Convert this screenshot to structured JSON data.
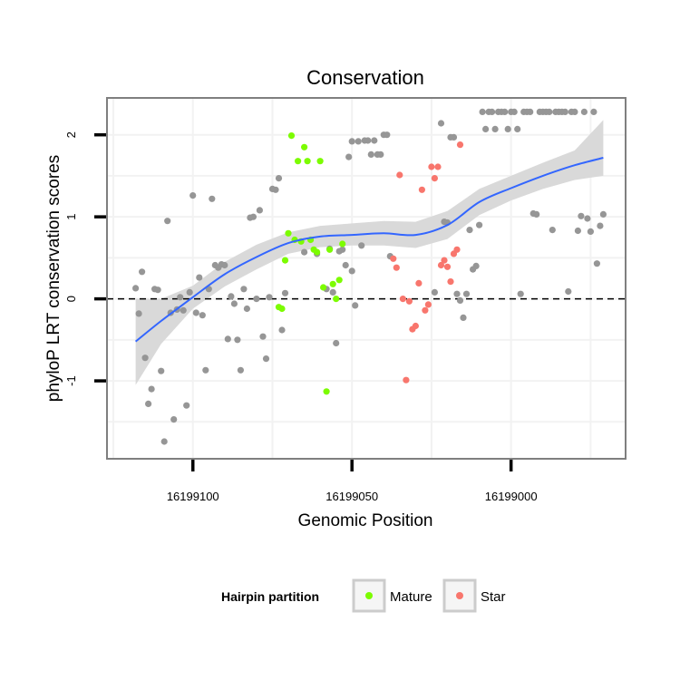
{
  "chart_data": {
    "type": "scatter",
    "title": "Conservation",
    "xlabel": "Genomic Position",
    "ylabel": "phyloP LRT conservation scores",
    "x_reversed": true,
    "xlim": [
      16199127,
      16198964
    ],
    "ylim": [
      -1.95,
      2.45
    ],
    "x_ticks": [
      16199100,
      16199050,
      16199000
    ],
    "x_tick_labels": [
      "16199100",
      "16199050",
      "16199000"
    ],
    "y_ticks": [
      -1,
      0,
      1,
      2
    ],
    "y_tick_labels": [
      "-1",
      "0",
      "1",
      "2"
    ],
    "grid": true,
    "reference_line": {
      "y": 0,
      "style": "dashed"
    },
    "legend": {
      "title": "Hairpin partition",
      "placement": "bottom",
      "entries": [
        {
          "label": "Mature",
          "color": "#7cfc00"
        },
        {
          "label": "Star",
          "color": "#f8766d"
        }
      ]
    },
    "colors": {
      "other": "#969696",
      "Mature": "#7cfc00",
      "Star": "#f8766d",
      "smooth": "#3366ff",
      "ribbon": "#d9d9d9",
      "panel_border": "#7f7f7f",
      "grid": "#f2f2f2"
    },
    "series": [
      {
        "group": "other",
        "points": [
          [
            16199118,
            0.13
          ],
          [
            16199117,
            -0.18
          ],
          [
            16199116,
            0.33
          ],
          [
            16199115,
            -0.72
          ],
          [
            16199114,
            -1.28
          ],
          [
            16199113,
            -1.1
          ],
          [
            16199112,
            0.12
          ],
          [
            16199111,
            0.11
          ],
          [
            16199110,
            -0.88
          ],
          [
            16199109,
            -1.74
          ],
          [
            16199108,
            0.95
          ],
          [
            16199107,
            -0.17
          ],
          [
            16199106,
            -1.47
          ],
          [
            16199105,
            -0.13
          ],
          [
            16199104,
            0.02
          ],
          [
            16199103,
            -0.14
          ],
          [
            16199102,
            -1.3
          ],
          [
            16199101,
            0.08
          ],
          [
            16199100,
            1.26
          ],
          [
            16199099,
            -0.17
          ],
          [
            16199098,
            0.26
          ],
          [
            16199097,
            -0.2
          ],
          [
            16199096,
            -0.87
          ],
          [
            16199095,
            0.12
          ],
          [
            16199094,
            1.22
          ],
          [
            16199093,
            0.41
          ],
          [
            16199092,
            0.38
          ],
          [
            16199091,
            0.42
          ],
          [
            16199090,
            0.41
          ],
          [
            16199089,
            -0.49
          ],
          [
            16199088,
            0.03
          ],
          [
            16199087,
            -0.06
          ],
          [
            16199086,
            -0.5
          ],
          [
            16199085,
            -0.87
          ],
          [
            16199084,
            0.12
          ],
          [
            16199083,
            -0.12
          ],
          [
            16199082,
            0.99
          ],
          [
            16199081,
            1.0
          ],
          [
            16199080,
            0.0
          ],
          [
            16199079,
            1.08
          ],
          [
            16199078,
            -0.46
          ],
          [
            16199077,
            -0.73
          ],
          [
            16199076,
            0.02
          ],
          [
            16199075,
            1.34
          ],
          [
            16199074,
            1.33
          ],
          [
            16199073,
            1.47
          ],
          [
            16199072,
            -0.38
          ],
          [
            16199071,
            0.07
          ],
          [
            16199050,
            0.34
          ],
          [
            16199065,
            0.57
          ],
          [
            16199061,
            0.55
          ],
          [
            16199058,
            0.12
          ],
          [
            16199057,
            0.61
          ],
          [
            16199056,
            0.08
          ],
          [
            16199055,
            -0.54
          ],
          [
            16199054,
            0.58
          ],
          [
            16199053,
            0.6
          ],
          [
            16199052,
            0.41
          ],
          [
            16199051,
            1.73
          ],
          [
            16199050,
            1.92
          ],
          [
            16199049,
            -0.08
          ],
          [
            16199048,
            1.92
          ],
          [
            16199047,
            0.65
          ],
          [
            16199046,
            1.93
          ],
          [
            16199045,
            1.93
          ],
          [
            16199044,
            1.76
          ],
          [
            16199043,
            1.93
          ],
          [
            16199042,
            1.76
          ],
          [
            16199041,
            1.76
          ],
          [
            16199040,
            2.0
          ],
          [
            16199039,
            2.0
          ],
          [
            16199038,
            0.52
          ],
          [
            16199024,
            0.08
          ],
          [
            16199022,
            2.14
          ],
          [
            16199021,
            0.94
          ],
          [
            16199020,
            0.93
          ],
          [
            16199019,
            1.97
          ],
          [
            16199018,
            1.97
          ],
          [
            16199017,
            0.06
          ],
          [
            16199016,
            -0.02
          ],
          [
            16199015,
            -0.23
          ],
          [
            16199014,
            0.06
          ],
          [
            16199013,
            0.84
          ],
          [
            16199012,
            0.36
          ],
          [
            16199011,
            0.4
          ],
          [
            16199010,
            0.9
          ],
          [
            16199009,
            2.28
          ],
          [
            16199008,
            2.07
          ],
          [
            16199007,
            2.28
          ],
          [
            16199006,
            2.28
          ],
          [
            16199005,
            2.07
          ],
          [
            16199004,
            2.28
          ],
          [
            16199003,
            2.28
          ],
          [
            16199002,
            2.28
          ],
          [
            16199001,
            2.07
          ],
          [
            16199000,
            2.28
          ],
          [
            16198999,
            2.28
          ],
          [
            16198998,
            2.07
          ],
          [
            16198997,
            0.06
          ],
          [
            16198996,
            2.28
          ],
          [
            16198995,
            2.28
          ],
          [
            16198994,
            2.28
          ],
          [
            16198993,
            1.04
          ],
          [
            16198992,
            1.03
          ],
          [
            16198991,
            2.28
          ],
          [
            16198990,
            2.28
          ],
          [
            16198989,
            2.28
          ],
          [
            16198988,
            2.28
          ],
          [
            16198987,
            0.84
          ],
          [
            16198986,
            2.28
          ],
          [
            16198985,
            2.28
          ],
          [
            16198984,
            2.28
          ],
          [
            16198983,
            2.28
          ],
          [
            16198982,
            0.09
          ],
          [
            16198981,
            2.28
          ],
          [
            16198980,
            2.28
          ],
          [
            16198979,
            0.83
          ],
          [
            16198978,
            1.01
          ],
          [
            16198977,
            2.28
          ],
          [
            16198976,
            0.98
          ],
          [
            16198975,
            0.82
          ],
          [
            16198974,
            2.28
          ],
          [
            16198973,
            0.43
          ],
          [
            16198972,
            0.89
          ],
          [
            16198971,
            1.03
          ]
        ]
      },
      {
        "group": "Mature",
        "points": [
          [
            16199073,
            -0.1
          ],
          [
            16199072,
            -0.12
          ],
          [
            16199071,
            0.47
          ],
          [
            16199070,
            0.8
          ],
          [
            16199069,
            1.99
          ],
          [
            16199068,
            0.72
          ],
          [
            16199067,
            1.68
          ],
          [
            16199066,
            0.7
          ],
          [
            16199065,
            1.85
          ],
          [
            16199064,
            1.68
          ],
          [
            16199063,
            0.72
          ],
          [
            16199062,
            0.6
          ],
          [
            16199061,
            0.57
          ],
          [
            16199060,
            1.68
          ],
          [
            16199059,
            0.14
          ],
          [
            16199058,
            -1.13
          ],
          [
            16199057,
            0.6
          ],
          [
            16199056,
            0.18
          ],
          [
            16199055,
            0.0
          ],
          [
            16199054,
            0.23
          ],
          [
            16199053,
            0.67
          ]
        ]
      },
      {
        "group": "Star",
        "points": [
          [
            16199037,
            0.49
          ],
          [
            16199036,
            0.38
          ],
          [
            16199035,
            1.51
          ],
          [
            16199034,
            0.0
          ],
          [
            16199033,
            -0.99
          ],
          [
            16199032,
            -0.03
          ],
          [
            16199031,
            -0.37
          ],
          [
            16199030,
            -0.33
          ],
          [
            16199029,
            0.19
          ],
          [
            16199028,
            1.33
          ],
          [
            16199027,
            -0.14
          ],
          [
            16199026,
            -0.07
          ],
          [
            16199025,
            1.61
          ],
          [
            16199024,
            1.47
          ],
          [
            16199023,
            1.61
          ],
          [
            16199022,
            0.41
          ],
          [
            16199021,
            0.47
          ],
          [
            16199020,
            0.39
          ],
          [
            16199019,
            0.21
          ],
          [
            16199018,
            0.55
          ],
          [
            16199017,
            0.6
          ],
          [
            16199016,
            1.88
          ]
        ]
      }
    ],
    "smooth": {
      "x": [
        16199118,
        16199110,
        16199100,
        16199090,
        16199080,
        16199070,
        16199060,
        16199050,
        16199040,
        16199030,
        16199020,
        16199010,
        16199000,
        16198990,
        16198980,
        16198971
      ],
      "y": [
        -0.52,
        -0.27,
        0.02,
        0.3,
        0.51,
        0.68,
        0.76,
        0.78,
        0.8,
        0.78,
        0.9,
        1.18,
        1.35,
        1.5,
        1.63,
        1.72
      ],
      "lower": [
        -1.05,
        -0.55,
        -0.12,
        0.15,
        0.36,
        0.55,
        0.63,
        0.65,
        0.65,
        0.62,
        0.73,
        1.02,
        1.2,
        1.34,
        1.45,
        1.5
      ],
      "upper": [
        0.0,
        0.0,
        0.16,
        0.45,
        0.66,
        0.81,
        0.89,
        0.92,
        0.95,
        0.94,
        1.07,
        1.34,
        1.5,
        1.66,
        1.81,
        2.18
      ]
    }
  }
}
